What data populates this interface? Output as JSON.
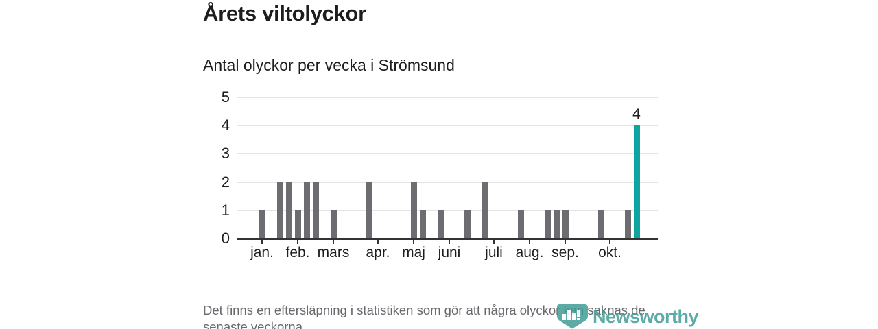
{
  "footer": {
    "note": "Det finns en eftersläpning i statistiken som gör att några olyckor kan saknas de senaste veckorna.",
    "brand_name": "Newsworthy"
  },
  "colors": {
    "bar": "#6c6c71",
    "highlight": "#0ea5a0",
    "grid": "#e4e4e4",
    "axis": "#333333",
    "text": "#1d1d1f",
    "muted": "#68686d",
    "brand": "#3f9c96"
  },
  "chart_data": {
    "type": "bar",
    "title": "Årets viltolyckor",
    "subtitle": "Antal olyckor per vecka i Strömsund",
    "x_unit": "vecka",
    "ylim": [
      0,
      5
    ],
    "y_ticks": [
      0,
      1,
      2,
      3,
      4,
      5
    ],
    "grid": true,
    "legend": "none",
    "values": [
      1,
      0,
      2,
      2,
      1,
      2,
      2,
      0,
      1,
      0,
      0,
      0,
      2,
      0,
      0,
      0,
      0,
      2,
      1,
      0,
      1,
      0,
      0,
      1,
      0,
      2,
      0,
      0,
      0,
      1,
      0,
      0,
      1,
      1,
      1,
      0,
      0,
      0,
      1,
      0,
      0,
      1,
      4
    ],
    "month_ticks": [
      {
        "label": "jan.",
        "week": 0
      },
      {
        "label": "feb.",
        "week": 4
      },
      {
        "label": "mars",
        "week": 8
      },
      {
        "label": "apr.",
        "week": 13
      },
      {
        "label": "maj",
        "week": 17
      },
      {
        "label": "juni",
        "week": 21
      },
      {
        "label": "juli",
        "week": 26
      },
      {
        "label": "aug.",
        "week": 30
      },
      {
        "label": "sep.",
        "week": 34
      },
      {
        "label": "okt.",
        "week": 39
      }
    ],
    "highlight_index": 42,
    "highlight_label": "4"
  }
}
